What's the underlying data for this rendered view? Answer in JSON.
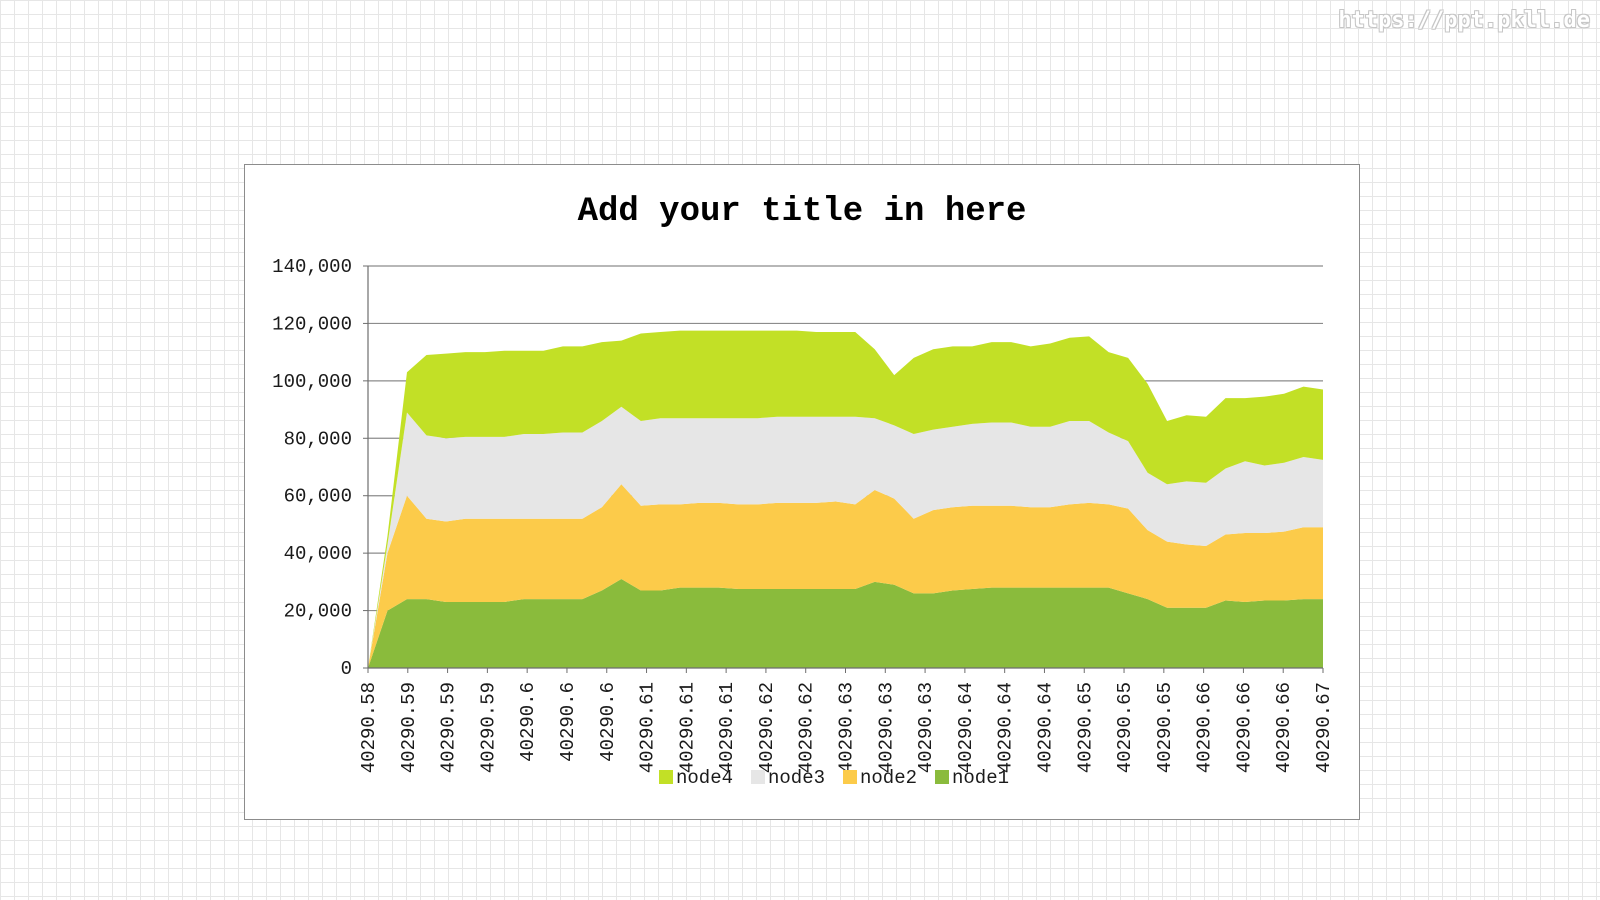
{
  "watermark": "https://ppt.pkll.de",
  "chart_data": {
    "type": "area",
    "stacked": true,
    "title": "Add your title in here",
    "xlabel": "",
    "ylabel": "",
    "ylim": [
      0,
      140000
    ],
    "yticks": [
      0,
      20000,
      40000,
      60000,
      80000,
      100000,
      120000,
      140000
    ],
    "ytick_labels": [
      "0",
      "20,000",
      "40,000",
      "60,000",
      "80,000",
      "100,000",
      "120,000",
      "140,000"
    ],
    "xtick_labels": [
      "40290.58",
      "40290.59",
      "40290.59",
      "40290.59",
      "40290.6",
      "40290.6",
      "40290.6",
      "40290.61",
      "40290.61",
      "40290.61",
      "40290.62",
      "40290.62",
      "40290.63",
      "40290.63",
      "40290.63",
      "40290.64",
      "40290.64",
      "40290.64",
      "40290.65",
      "40290.65",
      "40290.65",
      "40290.66",
      "40290.66",
      "40290.66",
      "40290.67"
    ],
    "grid": "horizontal",
    "legend_position": "bottom",
    "legend_order": [
      "node4",
      "node3",
      "node2",
      "node1"
    ],
    "colors": {
      "node1": "#8abb3c",
      "node2": "#fccb4a",
      "node3": "#e6e6e6",
      "node4": "#c2e026"
    },
    "series": [
      {
        "name": "node1",
        "values": [
          0,
          20000,
          24000,
          24000,
          23000,
          23000,
          23000,
          23000,
          24000,
          24000,
          24000,
          24000,
          27000,
          31000,
          27000,
          27000,
          28000,
          28000,
          28000,
          27500,
          27500,
          27500,
          27500,
          27500,
          27500,
          27500,
          30000,
          29000,
          26000,
          26000,
          27000,
          27500,
          28000,
          28000,
          28000,
          28000,
          28000,
          28000,
          28000,
          26000,
          24000,
          21000,
          21000,
          21000,
          23500,
          23000,
          23500,
          23500,
          24000,
          24000
        ]
      },
      {
        "name": "node2",
        "values": [
          0,
          20000,
          36000,
          28000,
          28000,
          29000,
          29000,
          29000,
          28000,
          28000,
          28000,
          28000,
          29000,
          33000,
          29500,
          30000,
          29000,
          29500,
          29500,
          29500,
          29500,
          30000,
          30000,
          30000,
          30500,
          29500,
          32000,
          30000,
          26000,
          29000,
          29000,
          29000,
          28500,
          28500,
          28000,
          28000,
          29000,
          29500,
          29000,
          29500,
          24000,
          23000,
          22000,
          21500,
          23000,
          24000,
          23500,
          24000,
          25000,
          25000
        ]
      },
      {
        "name": "node3",
        "values": [
          0,
          3000,
          29000,
          29000,
          29000,
          28500,
          28500,
          28500,
          29500,
          29500,
          30000,
          30000,
          30000,
          27000,
          29500,
          30000,
          30000,
          29500,
          29500,
          30000,
          30000,
          30000,
          30000,
          30000,
          29500,
          30500,
          25000,
          25500,
          29500,
          28000,
          28000,
          28500,
          29000,
          29000,
          28000,
          28000,
          29000,
          28500,
          25000,
          23500,
          20000,
          20000,
          22000,
          22000,
          23000,
          25000,
          23500,
          24000,
          24500,
          23500
        ]
      },
      {
        "name": "node4",
        "values": [
          0,
          3000,
          14000,
          28000,
          29500,
          29500,
          29500,
          30000,
          29000,
          29000,
          30000,
          30000,
          27500,
          23000,
          30500,
          30000,
          30500,
          30500,
          30500,
          30500,
          30500,
          30000,
          30000,
          29500,
          29500,
          29500,
          24000,
          17500,
          26500,
          28000,
          28000,
          27000,
          28000,
          28000,
          28000,
          29000,
          29000,
          29500,
          28000,
          29000,
          31000,
          22000,
          23000,
          23000,
          24500,
          22000,
          24000,
          24000,
          24500,
          24500
        ]
      }
    ]
  }
}
